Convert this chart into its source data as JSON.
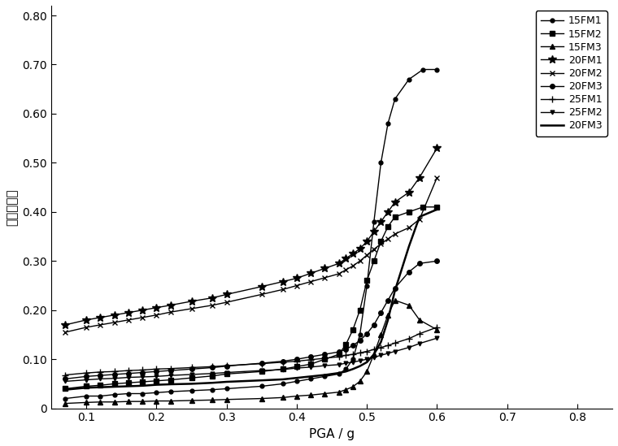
{
  "title": "",
  "xlabel": "PGA / g",
  "ylabel": "剪力分担率",
  "xlim": [
    0.05,
    0.85
  ],
  "ylim": [
    0.0,
    0.82
  ],
  "xticks": [
    0.1,
    0.2,
    0.3,
    0.4,
    0.5,
    0.6,
    0.7,
    0.8
  ],
  "yticks": [
    0.0,
    0.1,
    0.2,
    0.3,
    0.4,
    0.5,
    0.6,
    0.7,
    0.8
  ],
  "xtick_labels": [
    "0.1",
    "0.2",
    "0.3",
    "0.4",
    "0.5",
    "0.6",
    "0.7",
    "0.8"
  ],
  "ytick_labels": [
    "0",
    "0.10",
    "0.20",
    "0.30",
    "0.40",
    "0.50",
    "0.60",
    "0.70",
    "0.80"
  ],
  "series": [
    {
      "label": "15FM1",
      "marker": "o",
      "markersize": 3.5,
      "linewidth": 1.0,
      "x": [
        0.07,
        0.1,
        0.12,
        0.14,
        0.16,
        0.18,
        0.2,
        0.22,
        0.25,
        0.28,
        0.3,
        0.35,
        0.38,
        0.4,
        0.42,
        0.44,
        0.46,
        0.47,
        0.48,
        0.49,
        0.5,
        0.51,
        0.52,
        0.53,
        0.54,
        0.56,
        0.58,
        0.6
      ],
      "y": [
        0.02,
        0.025,
        0.025,
        0.028,
        0.03,
        0.03,
        0.032,
        0.034,
        0.036,
        0.038,
        0.04,
        0.045,
        0.05,
        0.055,
        0.06,
        0.065,
        0.07,
        0.08,
        0.1,
        0.15,
        0.25,
        0.38,
        0.5,
        0.58,
        0.63,
        0.67,
        0.69,
        0.69
      ]
    },
    {
      "label": "15FM2",
      "marker": "s",
      "markersize": 4.5,
      "linewidth": 1.0,
      "x": [
        0.07,
        0.1,
        0.12,
        0.14,
        0.16,
        0.18,
        0.2,
        0.22,
        0.25,
        0.28,
        0.3,
        0.35,
        0.38,
        0.4,
        0.42,
        0.44,
        0.46,
        0.47,
        0.48,
        0.49,
        0.5,
        0.51,
        0.52,
        0.53,
        0.54,
        0.56,
        0.58,
        0.6
      ],
      "y": [
        0.04,
        0.045,
        0.047,
        0.05,
        0.052,
        0.054,
        0.056,
        0.058,
        0.062,
        0.066,
        0.07,
        0.075,
        0.08,
        0.085,
        0.09,
        0.1,
        0.11,
        0.13,
        0.16,
        0.2,
        0.26,
        0.3,
        0.34,
        0.37,
        0.39,
        0.4,
        0.41,
        0.41
      ]
    },
    {
      "label": "15FM3",
      "marker": "^",
      "markersize": 4.5,
      "linewidth": 1.0,
      "x": [
        0.07,
        0.1,
        0.12,
        0.14,
        0.16,
        0.18,
        0.2,
        0.22,
        0.25,
        0.28,
        0.3,
        0.35,
        0.38,
        0.4,
        0.42,
        0.44,
        0.46,
        0.47,
        0.48,
        0.49,
        0.5,
        0.51,
        0.52,
        0.53,
        0.54,
        0.56,
        0.575,
        0.6
      ],
      "y": [
        0.01,
        0.012,
        0.013,
        0.013,
        0.014,
        0.014,
        0.015,
        0.015,
        0.016,
        0.017,
        0.018,
        0.02,
        0.022,
        0.025,
        0.027,
        0.03,
        0.033,
        0.038,
        0.044,
        0.055,
        0.075,
        0.11,
        0.15,
        0.19,
        0.22,
        0.21,
        0.18,
        0.16
      ]
    },
    {
      "label": "20FM1",
      "marker": "*",
      "markersize": 7,
      "linewidth": 1.0,
      "x": [
        0.07,
        0.1,
        0.12,
        0.14,
        0.16,
        0.18,
        0.2,
        0.22,
        0.25,
        0.28,
        0.3,
        0.35,
        0.38,
        0.4,
        0.42,
        0.44,
        0.46,
        0.47,
        0.48,
        0.49,
        0.5,
        0.51,
        0.52,
        0.53,
        0.54,
        0.56,
        0.575,
        0.6
      ],
      "y": [
        0.17,
        0.18,
        0.185,
        0.19,
        0.195,
        0.2,
        0.205,
        0.21,
        0.218,
        0.225,
        0.232,
        0.248,
        0.258,
        0.265,
        0.275,
        0.285,
        0.295,
        0.305,
        0.315,
        0.325,
        0.34,
        0.36,
        0.38,
        0.4,
        0.42,
        0.44,
        0.47,
        0.53
      ]
    },
    {
      "label": "20FM2",
      "marker": "x",
      "markersize": 5,
      "linewidth": 1.0,
      "x": [
        0.07,
        0.1,
        0.12,
        0.14,
        0.16,
        0.18,
        0.2,
        0.22,
        0.25,
        0.28,
        0.3,
        0.35,
        0.38,
        0.4,
        0.42,
        0.44,
        0.46,
        0.47,
        0.48,
        0.49,
        0.5,
        0.51,
        0.52,
        0.53,
        0.54,
        0.56,
        0.575,
        0.6
      ],
      "y": [
        0.155,
        0.165,
        0.17,
        0.175,
        0.18,
        0.185,
        0.19,
        0.196,
        0.203,
        0.21,
        0.216,
        0.232,
        0.242,
        0.25,
        0.258,
        0.266,
        0.274,
        0.282,
        0.29,
        0.3,
        0.312,
        0.324,
        0.335,
        0.345,
        0.355,
        0.368,
        0.385,
        0.47
      ]
    },
    {
      "label": "20FM3",
      "marker": "o",
      "markersize": 4,
      "linewidth": 1.0,
      "x": [
        0.07,
        0.1,
        0.12,
        0.14,
        0.16,
        0.18,
        0.2,
        0.22,
        0.25,
        0.28,
        0.3,
        0.35,
        0.38,
        0.4,
        0.42,
        0.44,
        0.46,
        0.47,
        0.48,
        0.49,
        0.5,
        0.51,
        0.52,
        0.53,
        0.54,
        0.56,
        0.575,
        0.6
      ],
      "y": [
        0.06,
        0.065,
        0.067,
        0.069,
        0.071,
        0.073,
        0.075,
        0.077,
        0.08,
        0.083,
        0.086,
        0.092,
        0.096,
        0.1,
        0.105,
        0.11,
        0.115,
        0.12,
        0.128,
        0.138,
        0.152,
        0.17,
        0.195,
        0.22,
        0.245,
        0.278,
        0.295,
        0.3
      ]
    },
    {
      "label": "25FM1",
      "marker": "+",
      "markersize": 6,
      "linewidth": 1.0,
      "x": [
        0.07,
        0.1,
        0.12,
        0.14,
        0.16,
        0.18,
        0.2,
        0.22,
        0.25,
        0.28,
        0.3,
        0.35,
        0.38,
        0.4,
        0.42,
        0.44,
        0.46,
        0.47,
        0.48,
        0.49,
        0.5,
        0.51,
        0.52,
        0.53,
        0.54,
        0.56,
        0.575,
        0.6
      ],
      "y": [
        0.068,
        0.072,
        0.074,
        0.075,
        0.077,
        0.078,
        0.08,
        0.081,
        0.083,
        0.085,
        0.087,
        0.091,
        0.094,
        0.096,
        0.099,
        0.102,
        0.105,
        0.108,
        0.11,
        0.113,
        0.116,
        0.12,
        0.124,
        0.128,
        0.133,
        0.142,
        0.152,
        0.165
      ]
    },
    {
      "label": "25FM2",
      "marker": "v",
      "markersize": 3.5,
      "linewidth": 1.0,
      "x": [
        0.07,
        0.1,
        0.12,
        0.14,
        0.16,
        0.18,
        0.2,
        0.22,
        0.25,
        0.28,
        0.3,
        0.35,
        0.38,
        0.4,
        0.42,
        0.44,
        0.46,
        0.47,
        0.48,
        0.49,
        0.5,
        0.51,
        0.52,
        0.53,
        0.54,
        0.56,
        0.575,
        0.6
      ],
      "y": [
        0.055,
        0.058,
        0.06,
        0.061,
        0.063,
        0.064,
        0.065,
        0.067,
        0.069,
        0.071,
        0.073,
        0.077,
        0.079,
        0.082,
        0.084,
        0.087,
        0.089,
        0.092,
        0.094,
        0.097,
        0.1,
        0.104,
        0.108,
        0.112,
        0.116,
        0.124,
        0.132,
        0.143
      ]
    },
    {
      "label": "20FM3",
      "marker": "None",
      "markersize": 0,
      "linewidth": 1.8,
      "x": [
        0.07,
        0.1,
        0.12,
        0.14,
        0.16,
        0.18,
        0.2,
        0.22,
        0.25,
        0.28,
        0.3,
        0.35,
        0.38,
        0.4,
        0.42,
        0.44,
        0.46,
        0.47,
        0.48,
        0.49,
        0.5,
        0.51,
        0.52,
        0.53,
        0.54,
        0.56,
        0.575,
        0.6
      ],
      "y": [
        0.038,
        0.042,
        0.043,
        0.044,
        0.045,
        0.046,
        0.048,
        0.049,
        0.05,
        0.052,
        0.054,
        0.057,
        0.059,
        0.062,
        0.065,
        0.068,
        0.072,
        0.075,
        0.08,
        0.086,
        0.094,
        0.11,
        0.135,
        0.18,
        0.24,
        0.33,
        0.39,
        0.405
      ]
    }
  ],
  "background_color": "#ffffff"
}
